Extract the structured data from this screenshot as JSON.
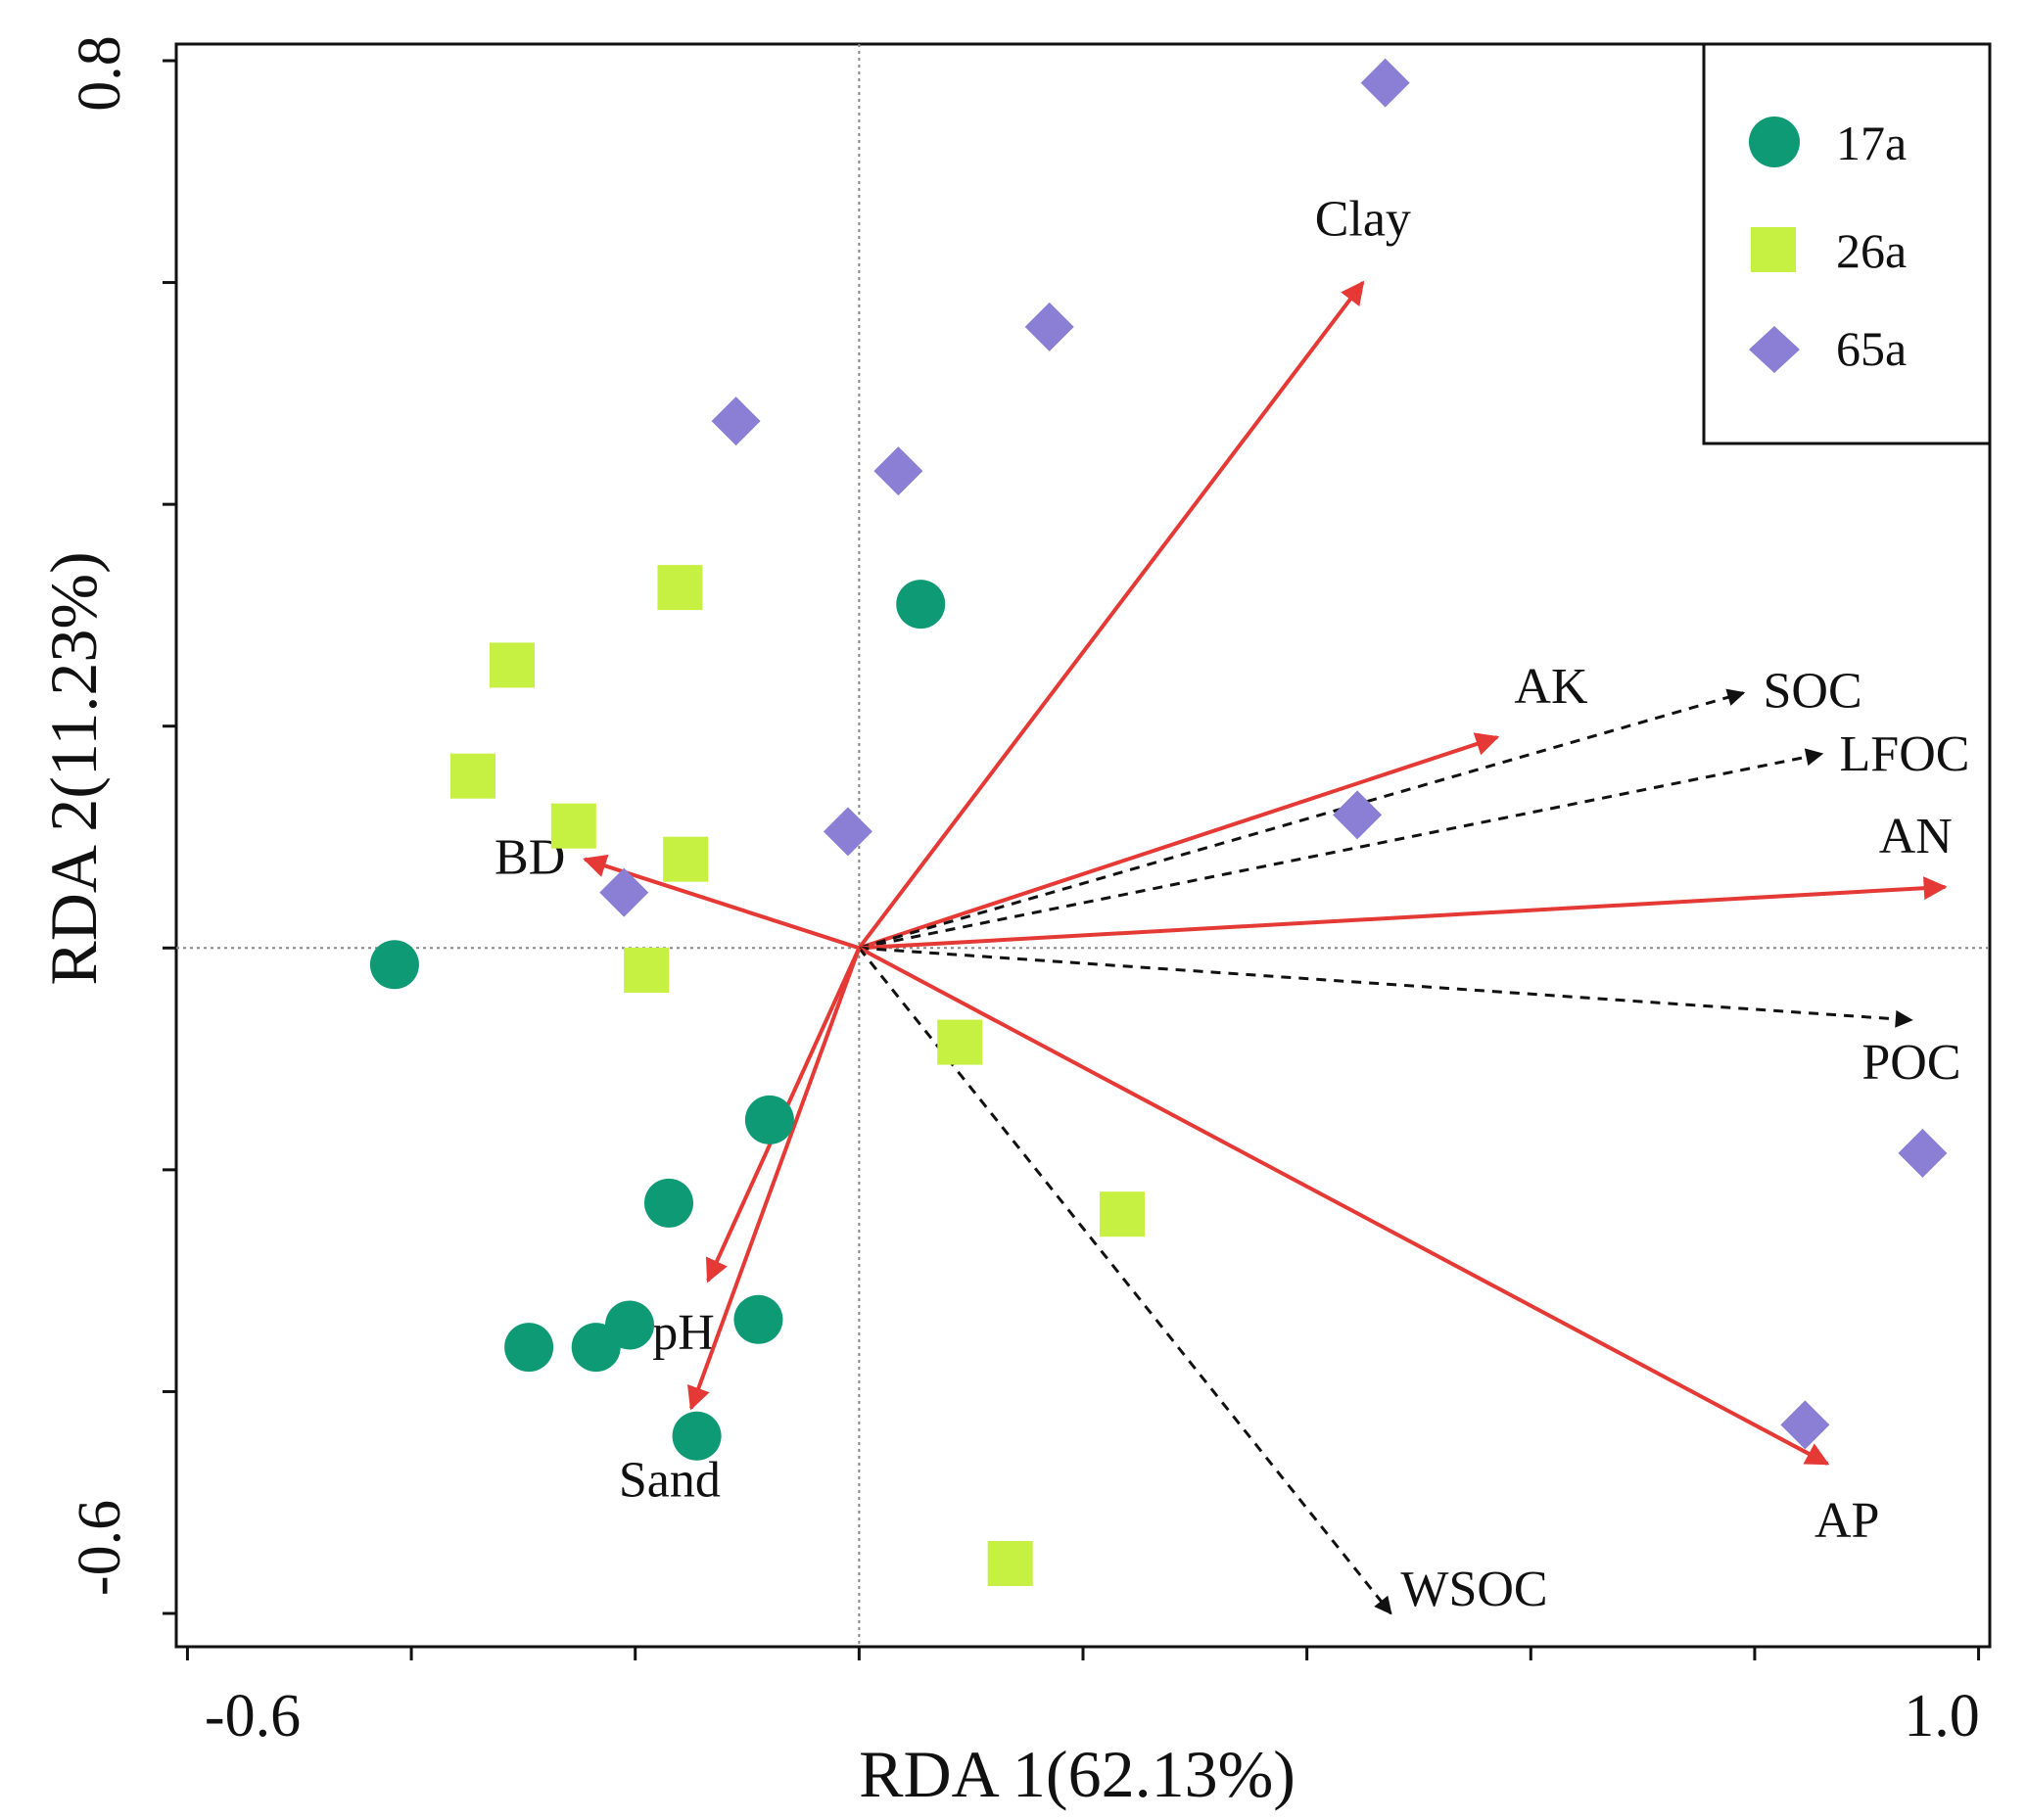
{
  "chart_data": {
    "type": "scatter",
    "title": "",
    "xlabel": "RDA 1(62.13%)",
    "ylabel": "RDA 2(11.23%)",
    "xlim": [
      -0.61,
      1.01
    ],
    "ylim": [
      -0.63,
      0.815
    ],
    "x_tick_labels": [
      "-0.6",
      "1.0"
    ],
    "y_tick_labels": [
      "0.8",
      "-0.6"
    ],
    "x_ticks": [
      -0.6,
      -0.4,
      -0.2,
      0.0,
      0.2,
      0.4,
      0.6,
      0.8,
      1.0
    ],
    "y_ticks": [
      0.8,
      0.6,
      0.4,
      0.2,
      0.0,
      -0.2,
      -0.4,
      -0.6
    ],
    "series": [
      {
        "name": "17a",
        "marker": "circle",
        "color": "#0f9a76",
        "points": [
          [
            0.055,
            0.31
          ],
          [
            -0.415,
            -0.015
          ],
          [
            -0.08,
            -0.155
          ],
          [
            -0.17,
            -0.23
          ],
          [
            -0.295,
            -0.36
          ],
          [
            -0.235,
            -0.36
          ],
          [
            -0.205,
            -0.34
          ],
          [
            -0.09,
            -0.335
          ],
          [
            -0.145,
            -0.44
          ]
        ]
      },
      {
        "name": "26a",
        "marker": "square",
        "color": "#c6f042",
        "points": [
          [
            -0.16,
            0.325
          ],
          [
            -0.31,
            0.255
          ],
          [
            -0.345,
            0.155
          ],
          [
            -0.255,
            0.11
          ],
          [
            -0.155,
            0.08
          ],
          [
            -0.19,
            -0.02
          ],
          [
            0.09,
            -0.085
          ],
          [
            0.235,
            -0.24
          ],
          [
            0.135,
            -0.555
          ]
        ]
      },
      {
        "name": "65a",
        "marker": "diamond",
        "color": "#8a7fd4",
        "points": [
          [
            0.47,
            0.78
          ],
          [
            0.17,
            0.56
          ],
          [
            -0.11,
            0.475
          ],
          [
            0.035,
            0.43
          ],
          [
            -0.01,
            0.105
          ],
          [
            -0.21,
            0.05
          ],
          [
            0.445,
            0.12
          ],
          [
            0.95,
            -0.185
          ],
          [
            0.845,
            -0.43
          ]
        ]
      }
    ],
    "vectors": [
      {
        "name": "Clay",
        "x": 0.45,
        "y": 0.6,
        "style": "solid",
        "color": "#e53935"
      },
      {
        "name": "AK",
        "x": 0.57,
        "y": 0.19,
        "style": "solid",
        "color": "#e53935"
      },
      {
        "name": "SOC",
        "x": 0.79,
        "y": 0.23,
        "style": "dashed",
        "color": "#111111"
      },
      {
        "name": "LFOC",
        "x": 0.86,
        "y": 0.175,
        "style": "dashed",
        "color": "#111111"
      },
      {
        "name": "AN",
        "x": 0.97,
        "y": 0.055,
        "style": "solid",
        "color": "#e53935"
      },
      {
        "name": "POC",
        "x": 0.94,
        "y": -0.065,
        "style": "dashed",
        "color": "#111111"
      },
      {
        "name": "AP",
        "x": 0.865,
        "y": -0.465,
        "style": "solid",
        "color": "#e53935"
      },
      {
        "name": "WSOC",
        "x": 0.475,
        "y": -0.6,
        "style": "dashed",
        "color": "#111111"
      },
      {
        "name": "BD",
        "x": -0.245,
        "y": 0.08,
        "style": "solid",
        "color": "#e53935"
      },
      {
        "name": "pH",
        "x": -0.135,
        "y": -0.3,
        "style": "solid",
        "color": "#e53935"
      },
      {
        "name": "Sand",
        "x": -0.15,
        "y": -0.415,
        "style": "solid",
        "color": "#e53935"
      }
    ],
    "legend": {
      "position": "top-right",
      "entries": [
        "17a",
        "26a",
        "65a"
      ]
    }
  }
}
